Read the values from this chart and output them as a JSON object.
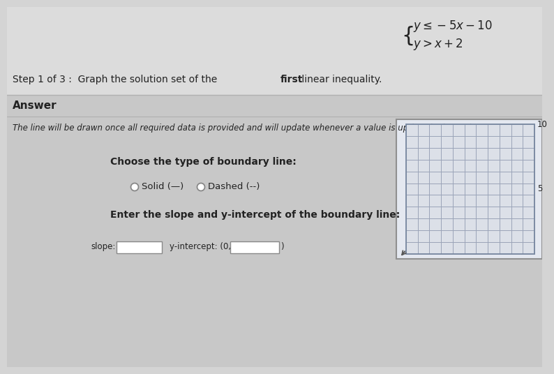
{
  "bg_color": "#d4d4d4",
  "top_section_bg": "#dcdcdc",
  "answer_section_bg": "#c8c8c8",
  "system_text": "$\\{y \\leq -5x - 10$",
  "text_color": "#222222",
  "instruction_text": "The line will be drawn once all required data is provided and will update whenever a value is updated. The region",
  "choose_label": "Choose the type of boundary line:",
  "solid_label": "Solid (—)",
  "dashed_label": "Dashed (--)",
  "slope_label": "Enter the slope and y-intercept of the boundary line:",
  "slope_field_label": "slope:",
  "intercept_field_label": "y-intercept: (0,",
  "grid_tick_top": "10",
  "grid_tick_mid": "5",
  "grid_color": "#9aa4b8",
  "grid_border_color": "#7888a0",
  "radio_color": "#888888",
  "separator_color": "#b0b0b0"
}
